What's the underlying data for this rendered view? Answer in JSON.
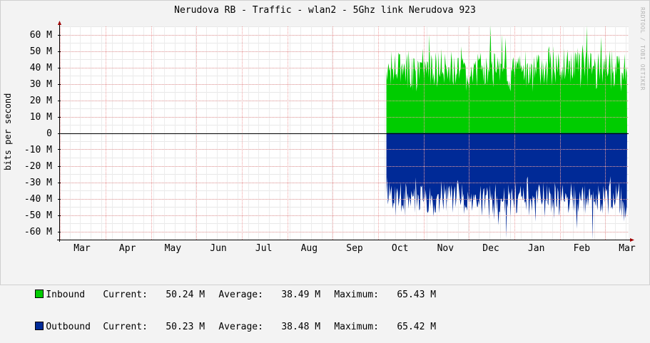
{
  "chart_data": {
    "type": "area",
    "title": "Nerudova RB - Traffic - wlan2 - 5Ghz link Nerudova 923",
    "watermark": "RRDTOOL / TOBI OETIKER",
    "ylabel": "bits per second",
    "ylim": [
      -65000000,
      65000000
    ],
    "y_ticks": [
      {
        "value": 60000000,
        "label": "60 M"
      },
      {
        "value": 50000000,
        "label": "50 M"
      },
      {
        "value": 40000000,
        "label": "40 M"
      },
      {
        "value": 30000000,
        "label": "30 M"
      },
      {
        "value": 20000000,
        "label": "20 M"
      },
      {
        "value": 10000000,
        "label": "10 M"
      },
      {
        "value": 0,
        "label": "0"
      },
      {
        "value": -10000000,
        "label": "-10 M"
      },
      {
        "value": -20000000,
        "label": "-20 M"
      },
      {
        "value": -30000000,
        "label": "-30 M"
      },
      {
        "value": -40000000,
        "label": "-40 M"
      },
      {
        "value": -50000000,
        "label": "-50 M"
      },
      {
        "value": -60000000,
        "label": "-60 M"
      }
    ],
    "x_ticks": [
      "Mar",
      "Apr",
      "May",
      "Jun",
      "Jul",
      "Aug",
      "Sep",
      "Oct",
      "Nov",
      "Dec",
      "Jan",
      "Feb",
      "Mar"
    ],
    "data_start_month_index": 6.7,
    "series": [
      {
        "name": "Inbound",
        "color": "#00cc00",
        "base": 30000000,
        "min": 16000000,
        "max": 65430000
      },
      {
        "name": "Outbound",
        "color": "#002a97",
        "base": -30000000,
        "min": -65420000,
        "max": -16000000
      }
    ],
    "grid": true,
    "legend_placement": "bottom-left"
  },
  "legend": [
    {
      "name": "Inbound",
      "color": "#00cc00",
      "current_label": "Current:",
      "current": "50.24 M",
      "average_label": "Average:",
      "average": "38.49 M",
      "maximum_label": "Maximum:",
      "maximum": "65.43 M"
    },
    {
      "name": "Outbound",
      "color": "#002a97",
      "current_label": "Current:",
      "current": "50.23 M",
      "average_label": "Average:",
      "average": "38.48 M",
      "maximum_label": "Maximum:",
      "maximum": "65.42 M"
    }
  ]
}
